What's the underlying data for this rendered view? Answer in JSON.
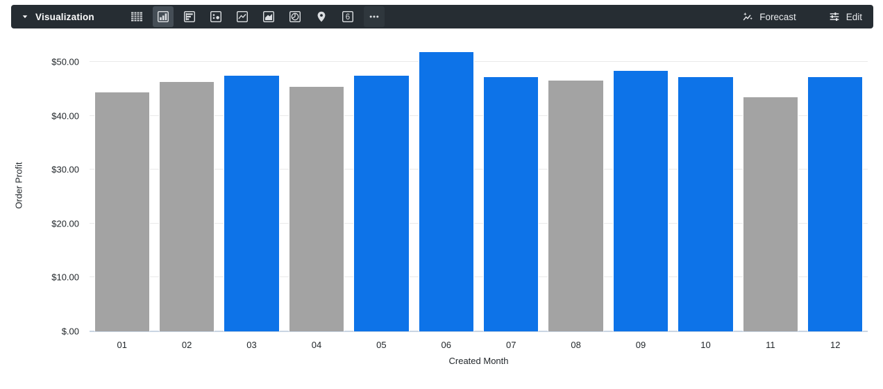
{
  "toolbar": {
    "menu_label": "Visualization",
    "chart_types": [
      {
        "name": "table",
        "selected": false
      },
      {
        "name": "column-chart",
        "selected": true
      },
      {
        "name": "bar-chart",
        "selected": false
      },
      {
        "name": "scatter",
        "selected": false
      },
      {
        "name": "line-chart",
        "selected": false
      },
      {
        "name": "area-chart",
        "selected": false
      },
      {
        "name": "pie-chart",
        "selected": false
      },
      {
        "name": "map",
        "selected": false
      },
      {
        "name": "single-value",
        "selected": false
      },
      {
        "name": "more",
        "selected": false
      }
    ],
    "single_value_glyph": "6",
    "forecast_label": "Forecast",
    "edit_label": "Edit"
  },
  "chart_data": {
    "type": "bar",
    "title": "",
    "xlabel": "Created Month",
    "ylabel": "Order Profit",
    "categories": [
      "01",
      "02",
      "03",
      "04",
      "05",
      "06",
      "07",
      "08",
      "09",
      "10",
      "11",
      "12"
    ],
    "values": [
      44.5,
      46.4,
      47.6,
      45.5,
      47.6,
      52.0,
      47.3,
      46.6,
      48.5,
      47.3,
      43.5,
      47.3
    ],
    "bar_color_keys": [
      "gray",
      "gray",
      "blue",
      "gray",
      "blue",
      "blue",
      "blue",
      "gray",
      "blue",
      "blue",
      "gray",
      "blue"
    ],
    "colors": {
      "blue": "#0d73e8",
      "gray": "#a3a3a3"
    },
    "y_ticks": [
      {
        "value": 0,
        "label": "$.00"
      },
      {
        "value": 10,
        "label": "$10.00"
      },
      {
        "value": 20,
        "label": "$20.00"
      },
      {
        "value": 30,
        "label": "$30.00"
      },
      {
        "value": 40,
        "label": "$40.00"
      },
      {
        "value": 50,
        "label": "$50.00"
      }
    ],
    "ylim": [
      0,
      54
    ],
    "grid": true,
    "legend": "none"
  }
}
